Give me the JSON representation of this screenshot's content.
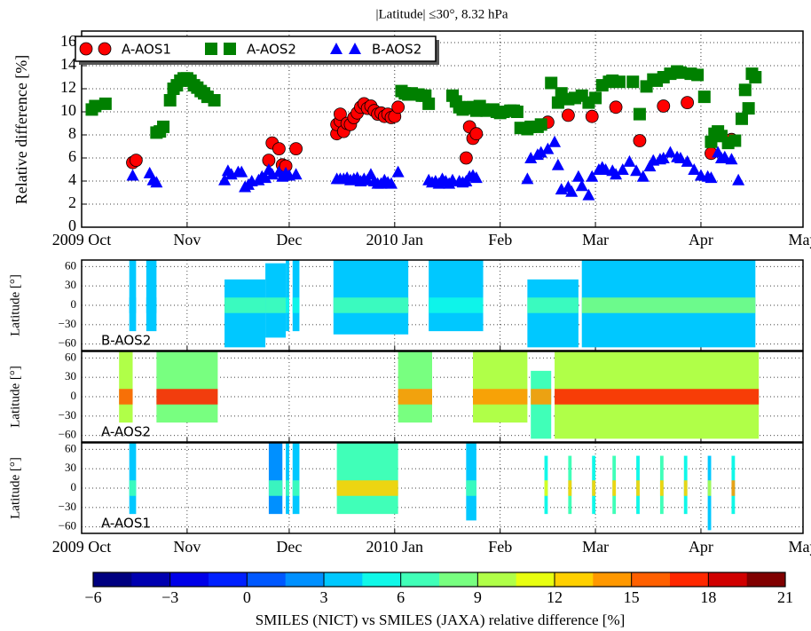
{
  "chart_data": [
    {
      "type": "scatter",
      "title": "|Latitude| ≤30°, 8.32 hPa",
      "ylabel": "Relative difference [%]",
      "xlim": [
        0,
        212
      ],
      "xticks": [
        {
          "value": 0,
          "label": "2009 Oct"
        },
        {
          "value": 31,
          "label": "Nov"
        },
        {
          "value": 61,
          "label": "Dec"
        },
        {
          "value": 92,
          "label": "2010 Jan"
        },
        {
          "value": 123,
          "label": "Feb"
        },
        {
          "value": 151,
          "label": "Mar"
        },
        {
          "value": 182,
          "label": "Apr"
        },
        {
          "value": 212,
          "label": "May"
        }
      ],
      "ylim": [
        0,
        17
      ],
      "yticks": [
        0,
        2,
        4,
        6,
        8,
        10,
        12,
        14,
        16
      ],
      "grid": true,
      "legend": "upper left",
      "series": [
        {
          "name": "A-AOS1",
          "color": "#ff0000",
          "marker": "circle",
          "x": [
            15,
            16,
            55,
            56,
            58,
            59,
            60,
            63,
            75,
            75,
            76,
            76,
            77,
            78,
            79,
            80,
            81,
            82,
            83,
            84,
            85,
            86,
            87,
            88,
            89,
            90,
            91,
            92,
            93,
            113,
            114,
            115,
            116,
            137,
            143,
            150,
            157,
            164,
            171,
            178,
            185,
            191
          ],
          "values": [
            5.6,
            5.8,
            5.8,
            7.3,
            6.8,
            5.4,
            5.3,
            6.8,
            8.1,
            8.9,
            9.2,
            9.8,
            8.3,
            9.0,
            8.9,
            9.5,
            9.9,
            10.4,
            10.7,
            10.3,
            10.5,
            10.1,
            9.8,
            9.9,
            9.6,
            9.8,
            9.5,
            9.6,
            10.4,
            6.0,
            8.7,
            7.7,
            8.1,
            9.1,
            9.7,
            9.6,
            10.4,
            7.5,
            10.5,
            10.8,
            6.4,
            7.6
          ]
        },
        {
          "name": "A-AOS2",
          "color": "#008000",
          "marker": "square",
          "x": [
            3,
            4,
            7,
            22,
            23,
            24,
            26,
            27,
            28,
            29,
            30,
            31,
            32,
            33,
            34,
            35,
            36,
            37,
            39,
            94,
            95,
            96,
            97,
            98,
            99,
            100,
            101,
            102,
            109,
            110,
            111,
            112,
            113,
            114,
            115,
            116,
            117,
            118,
            119,
            121,
            122,
            123,
            124,
            126,
            127,
            128,
            129,
            131,
            132,
            134,
            135,
            138,
            140,
            141,
            143,
            145,
            147,
            149,
            151,
            153,
            155,
            156,
            158,
            162,
            164,
            166,
            168,
            169,
            171,
            173,
            175,
            176,
            179,
            181,
            183,
            185,
            186,
            187,
            188,
            190,
            192,
            194,
            195,
            196,
            197,
            198
          ],
          "values": [
            10.2,
            10.5,
            10.7,
            8.2,
            8.3,
            8.7,
            11.0,
            12.0,
            12.3,
            12.7,
            12.9,
            12.9,
            12.7,
            12.3,
            12.1,
            11.8,
            11.6,
            11.3,
            11.0,
            11.8,
            11.6,
            11.5,
            11.6,
            11.5,
            11.5,
            11.4,
            11.4,
            10.7,
            11.4,
            10.9,
            10.4,
            10.2,
            10.3,
            10.4,
            10.4,
            10.1,
            10.5,
            10.2,
            10.1,
            10.2,
            10.0,
            9.9,
            10.0,
            10.1,
            10.1,
            10.0,
            8.6,
            8.5,
            8.7,
            8.7,
            8.9,
            12.5,
            10.8,
            11.6,
            11.1,
            11.2,
            11.4,
            10.8,
            11.2,
            12.3,
            12.6,
            12.7,
            12.6,
            12.6,
            9.8,
            12.2,
            12.8,
            12.7,
            13.0,
            13.3,
            13.5,
            13.4,
            13.3,
            13.2,
            11.3,
            7.4,
            8.1,
            8.3,
            7.9,
            7.3,
            7.5,
            9.4,
            11.9,
            10.3,
            13.3,
            13.0
          ]
        },
        {
          "name": "B-AOS2",
          "color": "#0000ff",
          "marker": "triangle",
          "x": [
            15,
            20,
            21,
            22,
            42,
            43,
            44,
            46,
            47,
            48,
            49,
            50,
            52,
            53,
            54,
            55,
            56,
            58,
            59,
            60,
            61,
            63,
            75,
            76,
            77,
            78,
            79,
            80,
            81,
            82,
            83,
            84,
            85,
            86,
            87,
            88,
            89,
            90,
            91,
            93,
            102,
            103,
            104,
            105,
            106,
            107,
            108,
            109,
            111,
            112,
            113,
            114,
            115,
            116,
            131,
            132,
            134,
            135,
            137,
            139,
            140,
            141,
            143,
            144,
            146,
            147,
            149,
            150,
            152,
            153,
            154,
            156,
            157,
            159,
            161,
            163,
            165,
            167,
            168,
            170,
            171,
            173,
            175,
            176,
            178,
            180,
            182,
            184,
            185,
            187,
            188,
            189,
            191,
            193
          ],
          "values": [
            4.5,
            4.7,
            4.1,
            3.9,
            4.1,
            4.9,
            4.6,
            4.8,
            4.8,
            3.5,
            3.7,
            4.0,
            4.1,
            4.4,
            4.3,
            5.0,
            4.6,
            4.8,
            4.4,
            4.7,
            4.5,
            4.6,
            4.2,
            4.2,
            4.2,
            4.3,
            4.1,
            4.2,
            4.3,
            4.0,
            4.2,
            4.1,
            4.6,
            4.0,
            3.8,
            3.8,
            4.1,
            3.9,
            3.8,
            4.8,
            4.1,
            3.9,
            4.0,
            3.8,
            4.2,
            4.0,
            3.8,
            4.1,
            4.0,
            3.9,
            4.0,
            4.4,
            4.5,
            4.3,
            4.2,
            6.0,
            6.3,
            6.5,
            6.8,
            7.4,
            5.4,
            3.3,
            3.5,
            3.1,
            4.4,
            3.6,
            2.8,
            4.4,
            5.0,
            5.2,
            5.0,
            4.9,
            4.6,
            5.0,
            5.7,
            4.9,
            4.4,
            5.3,
            5.8,
            5.9,
            6.0,
            6.5,
            6.1,
            6.0,
            5.7,
            5.0,
            4.5,
            4.4,
            4.3,
            6.5,
            6.0,
            6.1,
            5.9,
            4.1
          ]
        }
      ]
    },
    {
      "type": "swath",
      "ylabel": "Latitude [°]",
      "xlim": [
        0,
        212
      ],
      "xticks": [
        {
          "value": 0,
          "label": "2009 Oct"
        },
        {
          "value": 31,
          "label": "Nov"
        },
        {
          "value": 61,
          "label": "Dec"
        },
        {
          "value": 92,
          "label": "2010 Jan"
        },
        {
          "value": 123,
          "label": "Feb"
        },
        {
          "value": 151,
          "label": "Mar"
        },
        {
          "value": 182,
          "label": "Apr"
        },
        {
          "value": 212,
          "label": "May"
        }
      ],
      "ylim": [
        -70,
        70
      ],
      "yticks": [
        {
          "value": -60,
          "label": "−60"
        },
        {
          "value": -30,
          "label": "−30"
        },
        0,
        30,
        60
      ],
      "panels": [
        {
          "name": "B-AOS2",
          "color": "#0000ff",
          "swaths": [
            {
              "x": [
                14,
                16
              ],
              "lat": [
                -40,
                70
              ],
              "value": 3,
              "eq_value": 4
            },
            {
              "x": [
                19,
                22
              ],
              "lat": [
                -40,
                70
              ],
              "value": 3,
              "eq_value": 4
            },
            {
              "x": [
                42,
                54
              ],
              "lat": [
                -65,
                40
              ],
              "value": 3,
              "eq_value": 6
            },
            {
              "x": [
                54,
                60
              ],
              "lat": [
                -50,
                65
              ],
              "value": 4,
              "eq_value": 6
            },
            {
              "x": [
                60,
                61
              ],
              "lat": [
                -40,
                70
              ],
              "value": 3,
              "eq_value": 5
            },
            {
              "x": [
                62,
                64
              ],
              "lat": [
                -40,
                70
              ],
              "value": 3,
              "eq_value": 5
            },
            {
              "x": [
                74,
                96
              ],
              "lat": [
                -45,
                70
              ],
              "value": 3,
              "eq_value": 6
            },
            {
              "x": [
                102,
                118
              ],
              "lat": [
                -40,
                70
              ],
              "value": 3,
              "eq_value": 5
            },
            {
              "x": [
                131,
                146
              ],
              "lat": [
                -65,
                40
              ],
              "value": 4,
              "eq_value": 7
            },
            {
              "x": [
                147,
                198
              ],
              "lat": [
                -65,
                70
              ],
              "value": 4,
              "eq_value": 8
            }
          ]
        },
        {
          "name": "A-AOS2",
          "color": "#008000",
          "swaths": [
            {
              "x": [
                11,
                15
              ],
              "lat": [
                -40,
                70
              ],
              "value": 9,
              "eq_value": 16
            },
            {
              "x": [
                22,
                40
              ],
              "lat": [
                -40,
                70
              ],
              "value": 8,
              "eq_value": 17
            },
            {
              "x": [
                93,
                103
              ],
              "lat": [
                -40,
                70
              ],
              "value": 8,
              "eq_value": 14
            },
            {
              "x": [
                115,
                131
              ],
              "lat": [
                -40,
                70
              ],
              "value": 9,
              "eq_value": 14
            },
            {
              "x": [
                132,
                138
              ],
              "lat": [
                -65,
                40
              ],
              "value": 7,
              "eq_value": 14
            },
            {
              "x": [
                139,
                199
              ],
              "lat": [
                -65,
                70
              ],
              "value": 9,
              "eq_value": 17
            }
          ]
        },
        {
          "name": "A-AOS1",
          "color": "#ff0000",
          "swaths": [
            {
              "x": [
                14,
                16
              ],
              "lat": [
                -40,
                70
              ],
              "value": 4,
              "eq_value": 7
            },
            {
              "x": [
                55,
                59
              ],
              "lat": [
                -40,
                70
              ],
              "value": 2,
              "eq_value": 6
            },
            {
              "x": [
                60,
                61
              ],
              "lat": [
                -40,
                70
              ],
              "value": 3,
              "eq_value": 6
            },
            {
              "x": [
                62,
                64
              ],
              "lat": [
                -40,
                70
              ],
              "value": 3,
              "eq_value": 6
            },
            {
              "x": [
                75,
                93
              ],
              "lat": [
                -40,
                70
              ],
              "value": 6,
              "eq_value": 12
            },
            {
              "x": [
                113,
                116
              ],
              "lat": [
                -50,
                70
              ],
              "value": 3,
              "eq_value": 6
            },
            {
              "x": [
                136,
                137
              ],
              "lat": [
                -40,
                50
              ],
              "value": 5,
              "eq_value": 11
            },
            {
              "x": [
                143,
                144
              ],
              "lat": [
                -40,
                50
              ],
              "value": 6,
              "eq_value": 12
            },
            {
              "x": [
                150,
                151
              ],
              "lat": [
                -40,
                50
              ],
              "value": 5,
              "eq_value": 12
            },
            {
              "x": [
                156,
                157
              ],
              "lat": [
                -40,
                50
              ],
              "value": 6,
              "eq_value": 12
            },
            {
              "x": [
                163,
                164
              ],
              "lat": [
                -40,
                50
              ],
              "value": 5,
              "eq_value": 13
            },
            {
              "x": [
                170,
                171
              ],
              "lat": [
                -40,
                50
              ],
              "value": 6,
              "eq_value": 12
            },
            {
              "x": [
                177,
                178
              ],
              "lat": [
                -40,
                50
              ],
              "value": 5,
              "eq_value": 12
            },
            {
              "x": [
                184,
                185
              ],
              "lat": [
                -65,
                50
              ],
              "value": 3,
              "eq_value": 10
            },
            {
              "x": [
                191,
                192
              ],
              "lat": [
                -40,
                50
              ],
              "value": 5,
              "eq_value": 14
            }
          ]
        }
      ],
      "colorbar": {
        "label": "SMILES (NICT) vs SMILES (JAXA) relative difference [%]",
        "lim": [
          -6,
          21
        ],
        "ticks": [
          {
            "value": -6,
            "label": "−6"
          },
          {
            "value": -3,
            "label": "−3"
          },
          0,
          3,
          6,
          9,
          12,
          15,
          18,
          21
        ],
        "colors": [
          "#000080",
          "#0000b0",
          "#0000e8",
          "#0020ff",
          "#0058ff",
          "#0090ff",
          "#00c8ff",
          "#10f8e8",
          "#40ffb8",
          "#78ff80",
          "#b0ff48",
          "#e8ff10",
          "#ffd000",
          "#ff9800",
          "#ff6000",
          "#ff2800",
          "#d00000",
          "#800000"
        ]
      }
    }
  ]
}
